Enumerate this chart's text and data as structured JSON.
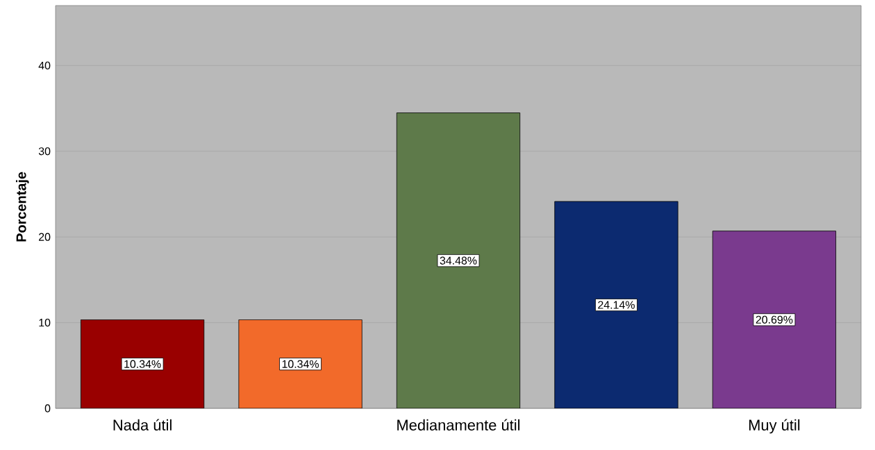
{
  "chart_data": {
    "type": "bar",
    "ylabel": "Porcentaje",
    "categories": [
      "Nada útil",
      null,
      "Medianamente útil",
      null,
      "Muy útil"
    ],
    "values": [
      10.34,
      10.34,
      34.48,
      24.14,
      20.69
    ],
    "colors": [
      "#990000",
      "#f26a2a",
      "#5e7a4a",
      "#0c2a70",
      "#7a3a8e"
    ],
    "value_labels": [
      "10.34%",
      "10.34%",
      "34.48%",
      "24.14%",
      "20.69%"
    ],
    "ylim": [
      0,
      47
    ],
    "yticks": [
      0,
      10,
      20,
      30,
      40
    ],
    "grid": "y"
  }
}
